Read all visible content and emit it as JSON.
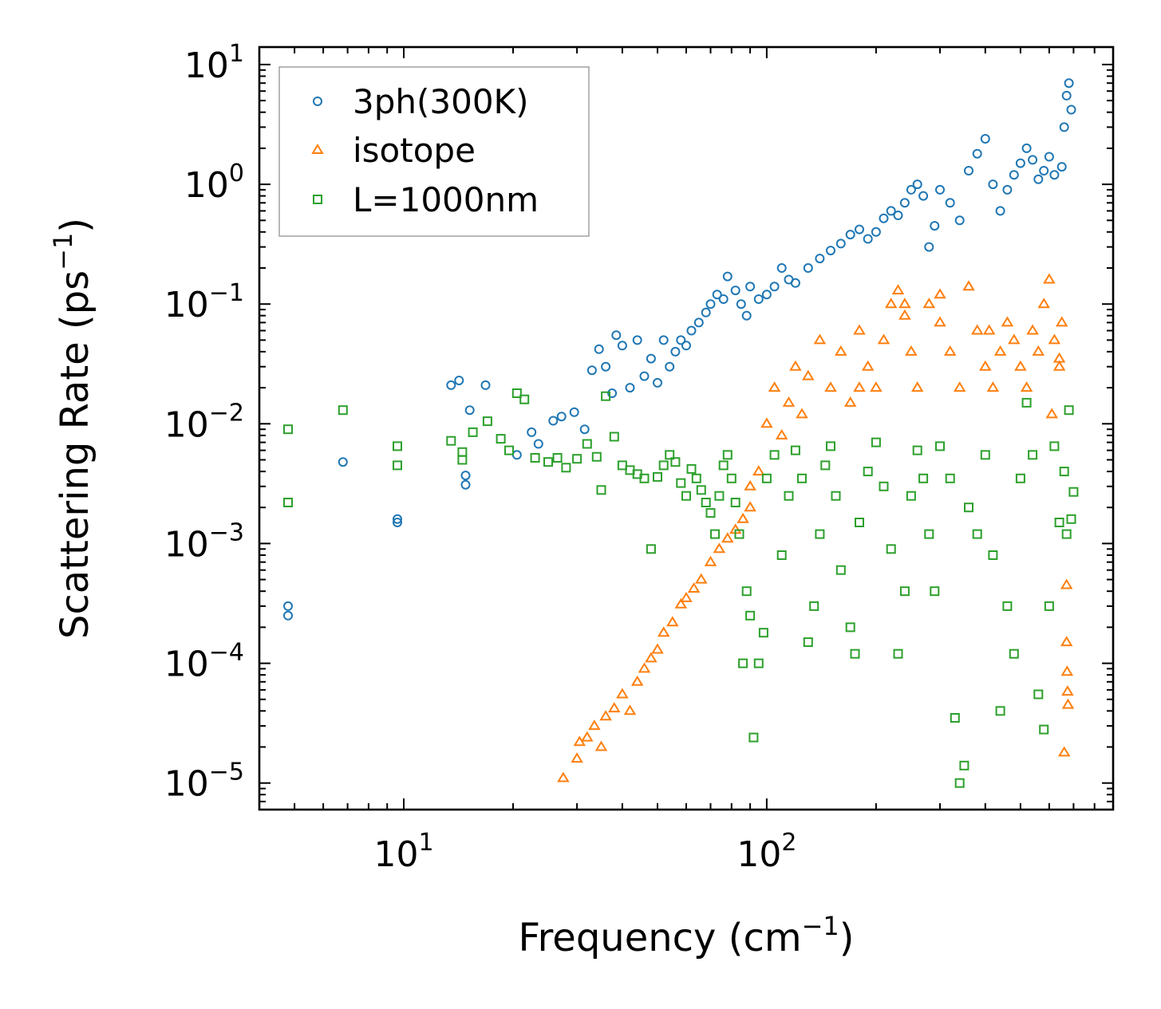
{
  "chart_data": {
    "type": "scatter",
    "title": "",
    "xlabel": "Frequency (cm",
    "xlabel_sup": "−1",
    "xlabel_end": ")",
    "ylabel": "Scattering Rate (ps",
    "ylabel_sup": "−1",
    "ylabel_end": ")",
    "xscale": "log",
    "yscale": "log",
    "xlim": [
      4.0,
      900
    ],
    "ylim": [
      6e-06,
      14
    ],
    "x_major_ticks": [
      {
        "value": 10,
        "base": "10",
        "exp": "1"
      },
      {
        "value": 100,
        "base": "10",
        "exp": "2"
      }
    ],
    "y_major_ticks": [
      {
        "value": 10,
        "base": "10",
        "exp": "1"
      },
      {
        "value": 1,
        "base": "10",
        "exp": "0"
      },
      {
        "value": 0.1,
        "base": "10",
        "exp": "−1"
      },
      {
        "value": 0.01,
        "base": "10",
        "exp": "−2"
      },
      {
        "value": 0.001,
        "base": "10",
        "exp": "−3"
      },
      {
        "value": 0.0001,
        "base": "10",
        "exp": "−4"
      },
      {
        "value": 1e-05,
        "base": "10",
        "exp": "−5"
      }
    ],
    "legend": {
      "position": "top-left",
      "entries": [
        {
          "name": "3ph(300K)",
          "marker": "circle",
          "color": "#1f77b4"
        },
        {
          "name": "isotope",
          "marker": "triangle",
          "color": "#ff7f0e"
        },
        {
          "name": "L=1000nm",
          "marker": "square",
          "color": "#2ca02c"
        }
      ]
    },
    "series": [
      {
        "name": "3ph(300K)",
        "marker": "circle",
        "color": "#1f77b4",
        "points": [
          [
            4.8,
            0.0003
          ],
          [
            4.8,
            0.00025
          ],
          [
            6.8,
            0.0048
          ],
          [
            9.6,
            0.0016
          ],
          [
            9.6,
            0.0015
          ],
          [
            13.5,
            0.021
          ],
          [
            14.2,
            0.023
          ],
          [
            14.8,
            0.0037
          ],
          [
            14.8,
            0.0031
          ],
          [
            15.2,
            0.013
          ],
          [
            16.8,
            0.021
          ],
          [
            20.5,
            0.0055
          ],
          [
            22.5,
            0.0085
          ],
          [
            23.5,
            0.0068
          ],
          [
            25.8,
            0.0106
          ],
          [
            27.2,
            0.0115
          ],
          [
            29.5,
            0.0125
          ],
          [
            31.5,
            0.009
          ],
          [
            33.0,
            0.028
          ],
          [
            34.5,
            0.042
          ],
          [
            36.0,
            0.03
          ],
          [
            37.5,
            0.018
          ],
          [
            38.5,
            0.055
          ],
          [
            40.0,
            0.045
          ],
          [
            42.0,
            0.02
          ],
          [
            44.0,
            0.05
          ],
          [
            46.0,
            0.025
          ],
          [
            48.0,
            0.035
          ],
          [
            50.0,
            0.022
          ],
          [
            52.0,
            0.05
          ],
          [
            54.0,
            0.03
          ],
          [
            56.0,
            0.04
          ],
          [
            58.0,
            0.05
          ],
          [
            60.0,
            0.045
          ],
          [
            62.0,
            0.06
          ],
          [
            65.0,
            0.07
          ],
          [
            68.0,
            0.085
          ],
          [
            70.0,
            0.1
          ],
          [
            73.0,
            0.12
          ],
          [
            76.0,
            0.11
          ],
          [
            78.0,
            0.17
          ],
          [
            82.0,
            0.13
          ],
          [
            85.0,
            0.1
          ],
          [
            88.0,
            0.08
          ],
          [
            90.0,
            0.14
          ],
          [
            95.0,
            0.11
          ],
          [
            100.0,
            0.12
          ],
          [
            105.0,
            0.14
          ],
          [
            110.0,
            0.2
          ],
          [
            115.0,
            0.16
          ],
          [
            120.0,
            0.15
          ],
          [
            130.0,
            0.2
          ],
          [
            140.0,
            0.24
          ],
          [
            150.0,
            0.28
          ],
          [
            160.0,
            0.32
          ],
          [
            170.0,
            0.38
          ],
          [
            180.0,
            0.42
          ],
          [
            190.0,
            0.35
          ],
          [
            200.0,
            0.4
          ],
          [
            210.0,
            0.52
          ],
          [
            220.0,
            0.6
          ],
          [
            230.0,
            0.55
          ],
          [
            240.0,
            0.7
          ],
          [
            250.0,
            0.9
          ],
          [
            260.0,
            1.0
          ],
          [
            270.0,
            0.8
          ],
          [
            280.0,
            0.3
          ],
          [
            290.0,
            0.45
          ],
          [
            300.0,
            0.9
          ],
          [
            320.0,
            0.7
          ],
          [
            340.0,
            0.5
          ],
          [
            360.0,
            1.3
          ],
          [
            380.0,
            1.8
          ],
          [
            400.0,
            2.4
          ],
          [
            420.0,
            1.0
          ],
          [
            440.0,
            0.6
          ],
          [
            460.0,
            0.9
          ],
          [
            480.0,
            1.2
          ],
          [
            500.0,
            1.5
          ],
          [
            520.0,
            2.0
          ],
          [
            540.0,
            1.6
          ],
          [
            560.0,
            1.1
          ],
          [
            580.0,
            1.3
          ],
          [
            600.0,
            1.7
          ],
          [
            620.0,
            1.2
          ],
          [
            650.0,
            1.4
          ],
          [
            660.0,
            3.0
          ],
          [
            670.0,
            5.5
          ],
          [
            680.0,
            7.0
          ],
          [
            690.0,
            4.2
          ]
        ]
      },
      {
        "name": "isotope",
        "marker": "triangle",
        "color": "#ff7f0e",
        "points": [
          [
            27.5,
            1.1e-05
          ],
          [
            30.0,
            1.6e-05
          ],
          [
            30.5,
            2.2e-05
          ],
          [
            32.0,
            2.4e-05
          ],
          [
            33.5,
            3e-05
          ],
          [
            35.0,
            2e-05
          ],
          [
            36.0,
            3.6e-05
          ],
          [
            38.0,
            4.2e-05
          ],
          [
            40.0,
            5.5e-05
          ],
          [
            42.0,
            4e-05
          ],
          [
            44.0,
            7e-05
          ],
          [
            46.0,
            9e-05
          ],
          [
            48.0,
            0.00011
          ],
          [
            50.0,
            0.00013
          ],
          [
            52.0,
            0.00018
          ],
          [
            55.0,
            0.00022
          ],
          [
            58.0,
            0.00031
          ],
          [
            60.0,
            0.00035
          ],
          [
            63.0,
            0.00042
          ],
          [
            66.0,
            0.0005
          ],
          [
            70.0,
            0.0007
          ],
          [
            74.0,
            0.0009
          ],
          [
            78.0,
            0.0011
          ],
          [
            82.0,
            0.0013
          ],
          [
            86.0,
            0.0016
          ],
          [
            90.0,
            0.002
          ],
          [
            95.0,
            0.004
          ],
          [
            100.0,
            0.01
          ],
          [
            105.0,
            0.02
          ],
          [
            110.0,
            0.008
          ],
          [
            115.0,
            0.015
          ],
          [
            120.0,
            0.03
          ],
          [
            125.0,
            0.012
          ],
          [
            130.0,
            0.025
          ],
          [
            140.0,
            0.05
          ],
          [
            150.0,
            0.02
          ],
          [
            160.0,
            0.04
          ],
          [
            170.0,
            0.015
          ],
          [
            180.0,
            0.06
          ],
          [
            190.0,
            0.03
          ],
          [
            200.0,
            0.02
          ],
          [
            210.0,
            0.05
          ],
          [
            220.0,
            0.1
          ],
          [
            230.0,
            0.13
          ],
          [
            240.0,
            0.08
          ],
          [
            250.0,
            0.04
          ],
          [
            260.0,
            0.02
          ],
          [
            280.0,
            0.1
          ],
          [
            300.0,
            0.07
          ],
          [
            320.0,
            0.04
          ],
          [
            340.0,
            0.02
          ],
          [
            360.0,
            0.14
          ],
          [
            380.0,
            0.06
          ],
          [
            400.0,
            0.03
          ],
          [
            420.0,
            0.02
          ],
          [
            440.0,
            0.04
          ],
          [
            460.0,
            0.07
          ],
          [
            480.0,
            0.05
          ],
          [
            500.0,
            0.03
          ],
          [
            520.0,
            0.02
          ],
          [
            540.0,
            0.06
          ],
          [
            560.0,
            0.04
          ],
          [
            580.0,
            0.1
          ],
          [
            600.0,
            0.16
          ],
          [
            620.0,
            0.05
          ],
          [
            640.0,
            0.03
          ],
          [
            650.0,
            0.07
          ],
          [
            670.0,
            0.00045
          ],
          [
            670.0,
            0.00015
          ],
          [
            672.0,
            8.5e-05
          ],
          [
            674.0,
            5.8e-05
          ],
          [
            676.0,
            4.5e-05
          ],
          [
            660.0,
            1.8e-05
          ],
          [
            640.0,
            0.035
          ],
          [
            610.0,
            0.012
          ],
          [
            410.0,
            0.06
          ],
          [
            300.0,
            0.12
          ],
          [
            240.0,
            0.1
          ],
          [
            180.0,
            0.02
          ],
          [
            90.0,
            0.003
          ]
        ]
      },
      {
        "name": "L=1000nm",
        "marker": "square",
        "color": "#2ca02c",
        "points": [
          [
            4.8,
            0.009
          ],
          [
            4.8,
            0.0022
          ],
          [
            6.8,
            0.013
          ],
          [
            9.6,
            0.0065
          ],
          [
            9.6,
            0.0045
          ],
          [
            13.5,
            0.0072
          ],
          [
            14.5,
            0.0058
          ],
          [
            14.5,
            0.005
          ],
          [
            15.5,
            0.0085
          ],
          [
            17.0,
            0.0105
          ],
          [
            18.5,
            0.0075
          ],
          [
            19.5,
            0.006
          ],
          [
            20.5,
            0.018
          ],
          [
            21.5,
            0.016
          ],
          [
            23.0,
            0.0052
          ],
          [
            25.0,
            0.0048
          ],
          [
            26.5,
            0.0052
          ],
          [
            28.0,
            0.0043
          ],
          [
            30.0,
            0.0051
          ],
          [
            32.0,
            0.0068
          ],
          [
            34.0,
            0.0053
          ],
          [
            35.0,
            0.0028
          ],
          [
            36.0,
            0.017
          ],
          [
            38.0,
            0.0078
          ],
          [
            40.0,
            0.0045
          ],
          [
            42.0,
            0.0041
          ],
          [
            44.0,
            0.0038
          ],
          [
            46.0,
            0.0035
          ],
          [
            48.0,
            0.0009
          ],
          [
            50.0,
            0.0036
          ],
          [
            52.0,
            0.0045
          ],
          [
            54.0,
            0.0055
          ],
          [
            56.0,
            0.0048
          ],
          [
            58.0,
            0.0032
          ],
          [
            60.0,
            0.0025
          ],
          [
            62.0,
            0.0042
          ],
          [
            64.0,
            0.0035
          ],
          [
            66.0,
            0.0028
          ],
          [
            68.0,
            0.0022
          ],
          [
            70.0,
            0.0018
          ],
          [
            72.0,
            0.0012
          ],
          [
            74.0,
            0.0025
          ],
          [
            76.0,
            0.0045
          ],
          [
            78.0,
            0.0055
          ],
          [
            80.0,
            0.0035
          ],
          [
            82.0,
            0.0022
          ],
          [
            84.0,
            0.0012
          ],
          [
            86.0,
            0.0001
          ],
          [
            88.0,
            0.0004
          ],
          [
            90.0,
            0.00025
          ],
          [
            92.0,
            2.4e-05
          ],
          [
            95.0,
            0.0001
          ],
          [
            98.0,
            0.00018
          ],
          [
            100.0,
            0.0035
          ],
          [
            105.0,
            0.0055
          ],
          [
            110.0,
            0.0008
          ],
          [
            115.0,
            0.0025
          ],
          [
            120.0,
            0.006
          ],
          [
            125.0,
            0.0035
          ],
          [
            130.0,
            0.00015
          ],
          [
            135.0,
            0.0003
          ],
          [
            140.0,
            0.0012
          ],
          [
            145.0,
            0.0045
          ],
          [
            150.0,
            0.0065
          ],
          [
            155.0,
            0.0025
          ],
          [
            160.0,
            0.0006
          ],
          [
            170.0,
            0.0002
          ],
          [
            175.0,
            0.00012
          ],
          [
            180.0,
            0.0015
          ],
          [
            190.0,
            0.004
          ],
          [
            200.0,
            0.007
          ],
          [
            210.0,
            0.003
          ],
          [
            220.0,
            0.0009
          ],
          [
            230.0,
            0.00012
          ],
          [
            240.0,
            0.0004
          ],
          [
            250.0,
            0.0025
          ],
          [
            260.0,
            0.006
          ],
          [
            270.0,
            0.0035
          ],
          [
            280.0,
            0.0012
          ],
          [
            290.0,
            0.0004
          ],
          [
            300.0,
            0.0065
          ],
          [
            320.0,
            0.0035
          ],
          [
            330.0,
            3.5e-05
          ],
          [
            340.0,
            1e-05
          ],
          [
            350.0,
            1.4e-05
          ],
          [
            360.0,
            0.002
          ],
          [
            380.0,
            0.0012
          ],
          [
            400.0,
            0.0055
          ],
          [
            420.0,
            0.0008
          ],
          [
            440.0,
            4e-05
          ],
          [
            460.0,
            0.0003
          ],
          [
            480.0,
            0.00012
          ],
          [
            500.0,
            0.0035
          ],
          [
            520.0,
            0.015
          ],
          [
            540.0,
            0.0055
          ],
          [
            560.0,
            5.5e-05
          ],
          [
            580.0,
            2.8e-05
          ],
          [
            600.0,
            0.0003
          ],
          [
            620.0,
            0.0065
          ],
          [
            640.0,
            0.0015
          ],
          [
            660.0,
            0.004
          ],
          [
            680.0,
            0.013
          ],
          [
            700.0,
            0.0027
          ],
          [
            690.0,
            0.0016
          ],
          [
            670.0,
            0.0012
          ]
        ]
      }
    ],
    "grid": false
  }
}
